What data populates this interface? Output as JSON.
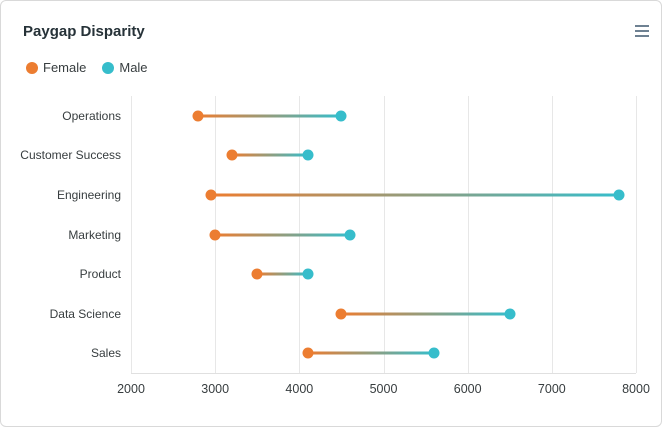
{
  "card": {
    "title": "Paygap Disparity"
  },
  "toolbar": {
    "menu_icon": "hamburger-menu-icon"
  },
  "legend": {
    "position": "top-left",
    "items": [
      {
        "label": "Female",
        "color": "#EC7D31"
      },
      {
        "label": "Male",
        "color": "#36BDCB"
      }
    ]
  },
  "chart_data": {
    "type": "dumbbell-rangebar",
    "orientation": "horizontal",
    "title": "Paygap Disparity",
    "categories": [
      "Operations",
      "Customer Success",
      "Engineering",
      "Marketing",
      "Product",
      "Data Science",
      "Sales"
    ],
    "series": [
      {
        "name": "Female",
        "color": "#EC7D31",
        "values": [
          2800,
          3200,
          2950,
          3000,
          3500,
          4500,
          4100
        ]
      },
      {
        "name": "Male",
        "color": "#36BDCB",
        "values": [
          4500,
          4100,
          7800,
          4600,
          4100,
          6500,
          5600
        ]
      }
    ],
    "x_ticks": [
      2000,
      3000,
      4000,
      5000,
      6000,
      7000,
      8000
    ],
    "xlim": [
      2000,
      8000
    ],
    "xlabel": "",
    "ylabel": "",
    "grid": "vertical-lines-only",
    "gridline_color": "#e7e7e7",
    "axis_text_color": "#373d3f",
    "legend_position": "top-left"
  }
}
